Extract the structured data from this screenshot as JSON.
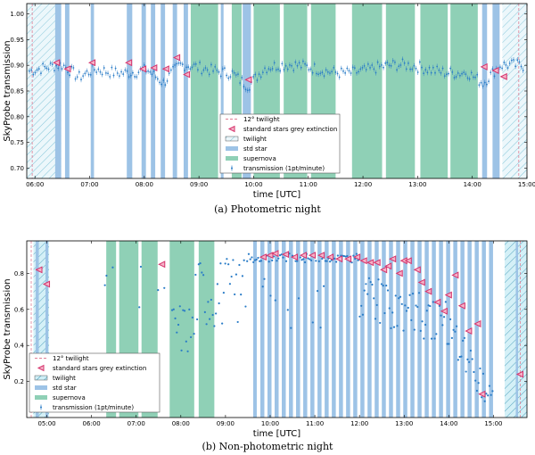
{
  "chart_data": [
    {
      "type": "scatter",
      "caption": "(a) Photometric night",
      "xlabel": "time [UTC]",
      "ylabel": "SkyProbe transmission",
      "xlim": [
        5.85,
        15.0
      ],
      "ylim": [
        0.68,
        1.02
      ],
      "xticks": [
        "06:00",
        "07:00",
        "08:00",
        "09:00",
        "10:00",
        "11:00",
        "12:00",
        "13:00",
        "14:00",
        "15:00"
      ],
      "xtick_values": [
        6,
        7,
        8,
        9,
        10,
        11,
        12,
        13,
        14,
        15
      ],
      "yticks": [
        "0.70",
        "0.75",
        "0.80",
        "0.85",
        "0.90",
        "0.95",
        "1.00"
      ],
      "ytick_values": [
        0.7,
        0.75,
        0.8,
        0.85,
        0.9,
        0.95,
        1.0
      ],
      "twilight_lines": [
        5.95,
        14.85
      ],
      "twilight_regions": [
        [
          5.85,
          6.48
        ],
        [
          14.55,
          15.0
        ]
      ],
      "std_star_bands": [
        [
          6.37,
          6.48
        ],
        [
          6.55,
          6.63
        ],
        [
          7.02,
          7.08
        ],
        [
          7.68,
          7.78
        ],
        [
          7.95,
          8.03
        ],
        [
          8.12,
          8.2
        ],
        [
          8.3,
          8.38
        ],
        [
          8.52,
          8.6
        ],
        [
          8.72,
          8.8
        ],
        [
          9.4,
          9.45
        ],
        [
          9.8,
          9.95
        ],
        [
          14.18,
          14.27
        ],
        [
          14.37,
          14.5
        ]
      ],
      "supernova_bands": [
        [
          8.85,
          9.35
        ],
        [
          9.6,
          9.78
        ],
        [
          10.0,
          10.48
        ],
        [
          10.55,
          10.98
        ],
        [
          11.05,
          11.5
        ],
        [
          11.8,
          12.35
        ],
        [
          12.42,
          12.95
        ],
        [
          13.05,
          13.55
        ],
        [
          13.6,
          14.1
        ]
      ],
      "transmission_series": {
        "name": "transmission (1pt/minute)",
        "x_start": 5.9,
        "x_end": 14.95,
        "step": 0.035,
        "mean": 0.893,
        "dips": [
          [
            6.8,
            0.87
          ],
          [
            8.35,
            0.86
          ],
          [
            9.9,
            0.865
          ],
          [
            14.2,
            0.865
          ]
        ]
      },
      "std_star_points": {
        "name": "standard stars grey extinction",
        "x": [
          6.4,
          6.6,
          7.05,
          7.72,
          7.98,
          8.18,
          8.4,
          8.6,
          8.78,
          9.91,
          14.22,
          14.43,
          14.58
        ],
        "y": [
          0.905,
          0.893,
          0.905,
          0.905,
          0.893,
          0.895,
          0.893,
          0.915,
          0.882,
          0.872,
          0.897,
          0.89,
          0.878
        ]
      },
      "legend": {
        "position": "lower-center",
        "entries": [
          "12° twilight",
          "standard stars grey extinction",
          "twilight",
          "std star",
          "supernova",
          "transmission (1pt/minute)"
        ]
      }
    },
    {
      "type": "scatter",
      "caption": "(b) Non-photometric night",
      "xlabel": "time [UTC]",
      "ylabel": "SkyProbe transmission",
      "xlim": [
        4.55,
        15.75
      ],
      "ylim": [
        0.0,
        0.98
      ],
      "xticks": [
        "05:00",
        "06:00",
        "07:00",
        "08:00",
        "09:00",
        "10:00",
        "11:00",
        "12:00",
        "13:00",
        "14:00",
        "15:00"
      ],
      "xtick_values": [
        5,
        6,
        7,
        8,
        9,
        10,
        11,
        12,
        13,
        14,
        15
      ],
      "yticks": [
        "0.2",
        "0.4",
        "0.6",
        "0.8"
      ],
      "ytick_values": [
        0.2,
        0.4,
        0.6,
        0.8
      ],
      "twilight_lines": [
        4.65,
        15.6
      ],
      "twilight_regions": [
        [
          4.7,
          5.05
        ],
        [
          15.25,
          15.75
        ]
      ],
      "std_star_bands": [
        [
          4.75,
          4.82
        ],
        [
          4.97,
          5.03
        ],
        [
          9.62,
          9.7
        ],
        [
          15.5,
          15.55
        ]
      ],
      "supernova_bands": [
        [
          6.33,
          6.55
        ],
        [
          6.62,
          7.05
        ],
        [
          7.12,
          7.48
        ],
        [
          7.75,
          8.3
        ],
        [
          8.4,
          8.75
        ]
      ],
      "striped_region": [
        9.78,
        14.95
      ],
      "std_star_points": {
        "name": "standard stars grey extinction",
        "x": [
          4.83,
          5.0,
          7.58,
          9.85,
          10.0,
          10.12,
          10.35,
          10.55,
          10.75,
          10.95,
          11.15,
          11.35,
          11.55,
          11.75,
          11.95,
          12.1,
          12.25,
          12.4,
          12.55,
          12.65,
          12.75,
          12.9,
          13.0,
          13.1,
          13.3,
          13.4,
          13.55,
          13.75,
          13.9,
          14.0,
          14.15,
          14.3,
          14.45,
          14.65,
          14.75,
          15.6
        ],
        "y": [
          0.82,
          0.74,
          0.85,
          0.89,
          0.9,
          0.91,
          0.905,
          0.89,
          0.9,
          0.9,
          0.9,
          0.89,
          0.88,
          0.88,
          0.89,
          0.87,
          0.86,
          0.86,
          0.82,
          0.84,
          0.88,
          0.8,
          0.87,
          0.87,
          0.82,
          0.75,
          0.7,
          0.64,
          0.59,
          0.68,
          0.79,
          0.62,
          0.48,
          0.52,
          0.13,
          0.24
        ]
      },
      "legend": {
        "position": "lower-left",
        "entries": [
          "12° twilight",
          "standard stars grey extinction",
          "twilight",
          "std star",
          "supernova",
          "transmission (1pt/minute)"
        ]
      }
    }
  ],
  "colors": {
    "std_star": "#9dc3e6",
    "supernova": "#8fd0b6",
    "twilight": "#bfe8f0",
    "marker": "#d6336c",
    "points": "#2a7cc7",
    "twilight_line": "#e07f95"
  }
}
